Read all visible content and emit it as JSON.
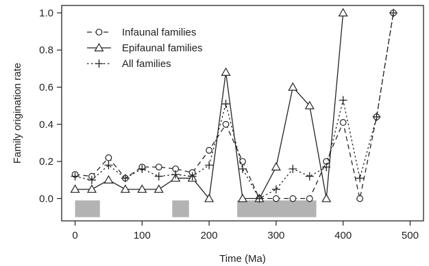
{
  "chart_data": {
    "type": "line",
    "title": "",
    "xlabel": "Time (Ma)",
    "ylabel": "Family origination rate",
    "xlim": [
      -20,
      520
    ],
    "ylim": [
      -0.12,
      1.04
    ],
    "x_ticks": [
      "0",
      "100",
      "200",
      "300",
      "400",
      "500"
    ],
    "y_ticks": [
      "0.0",
      "0.2",
      "0.4",
      "0.6",
      "0.8",
      "1.0"
    ],
    "x_tick_values": [
      0,
      100,
      200,
      300,
      400,
      500
    ],
    "y_tick_values": [
      0,
      0.2,
      0.4,
      0.6,
      0.8,
      1.0
    ],
    "grid": false,
    "legend_position": "top-left",
    "shaded_intervals": [
      {
        "start": 0,
        "end": 37,
        "ymin": -0.1,
        "ymax": -0.01
      },
      {
        "start": 145,
        "end": 170,
        "ymin": -0.1,
        "ymax": -0.01
      },
      {
        "start": 242,
        "end": 360,
        "ymin": -0.1,
        "ymax": -0.01
      }
    ],
    "series": [
      {
        "name": "Infaunal families",
        "marker": "circle",
        "dash": "dashed",
        "points": [
          [
            0,
            0.13
          ],
          [
            25,
            0.12
          ],
          [
            50,
            0.22
          ],
          [
            75,
            0.11
          ],
          [
            100,
            0.17
          ],
          [
            125,
            0.17
          ],
          [
            150,
            0.16
          ],
          [
            175,
            0.14
          ],
          [
            200,
            0.26
          ],
          [
            225,
            0.4
          ],
          [
            250,
            0.2
          ],
          [
            275,
            0.0
          ],
          [
            300,
            0.0
          ],
          [
            325,
            0.0
          ],
          [
            350,
            0.0
          ],
          [
            375,
            0.2
          ],
          [
            400,
            0.41
          ],
          [
            425,
            0.0
          ],
          [
            450,
            0.44
          ],
          [
            475,
            1.0
          ]
        ]
      },
      {
        "name": "Epifaunal families",
        "marker": "triangle",
        "dash": "solid",
        "points": [
          [
            0,
            0.05
          ],
          [
            25,
            0.05
          ],
          [
            50,
            0.1
          ],
          [
            75,
            0.05
          ],
          [
            100,
            0.05
          ],
          [
            125,
            0.05
          ],
          [
            150,
            0.11
          ],
          [
            175,
            0.11
          ],
          [
            200,
            0.0
          ],
          [
            225,
            0.68
          ],
          [
            250,
            0.0
          ],
          [
            275,
            0.0
          ],
          [
            300,
            0.17
          ],
          [
            325,
            0.6
          ],
          [
            350,
            0.5
          ],
          [
            375,
            0.0
          ],
          [
            400,
            1.0
          ]
        ]
      },
      {
        "name": "All families",
        "marker": "plus",
        "dash": "dotted",
        "points": [
          [
            0,
            0.12
          ],
          [
            25,
            0.1
          ],
          [
            50,
            0.18
          ],
          [
            75,
            0.11
          ],
          [
            100,
            0.16
          ],
          [
            125,
            0.12
          ],
          [
            150,
            0.13
          ],
          [
            175,
            0.12
          ],
          [
            200,
            0.18
          ],
          [
            225,
            0.51
          ],
          [
            250,
            0.16
          ],
          [
            275,
            0.0
          ],
          [
            300,
            0.05
          ],
          [
            325,
            0.16
          ],
          [
            350,
            0.12
          ],
          [
            375,
            0.17
          ],
          [
            400,
            0.53
          ],
          [
            425,
            0.11
          ],
          [
            450,
            0.44
          ],
          [
            475,
            1.0
          ]
        ]
      }
    ]
  }
}
